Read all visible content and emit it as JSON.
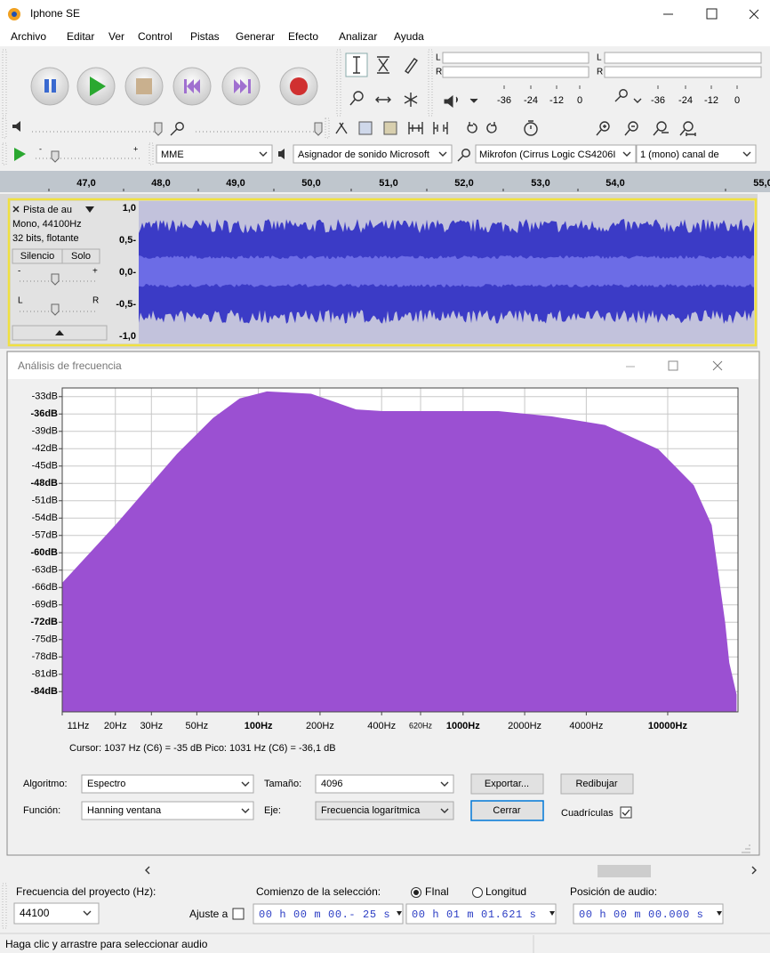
{
  "window": {
    "title": "Iphone SE"
  },
  "menu": [
    "Archivo",
    "Editar",
    "Ver",
    "Control",
    "Pistas",
    "Generar",
    "Efecto",
    "Analizar",
    "Ayuda"
  ],
  "playback_meter": {
    "left": "L",
    "right": "R",
    "scale": [
      "-36",
      "-24",
      "-12",
      "0"
    ]
  },
  "record_meter": {
    "left": "L",
    "right": "R",
    "scale": [
      "-36",
      "-24",
      "-12",
      "0"
    ]
  },
  "play_speed": {
    "min": "-",
    "max": "+"
  },
  "device_toolbar": {
    "host": "MME",
    "output": "Asignador de sonido Microsoft",
    "input": "Mikrofon (Cirrus Logic CS4206I",
    "channels": "1 (mono) canal de"
  },
  "timeline": [
    "47,0",
    "48,0",
    "49,0",
    "50,0",
    "51,0",
    "52,0",
    "53,0",
    "54,0",
    "55,0"
  ],
  "track": {
    "name": "Pista de au",
    "info": [
      "Mono, 44100Hz",
      "32 bits, flotante"
    ],
    "buttons": [
      "Silencio",
      "Solo"
    ],
    "gain": [
      "-",
      "+"
    ],
    "pan": [
      "L",
      "R"
    ],
    "scale": [
      "1,0",
      "0,5-",
      "0,0-",
      "-0,5-",
      "-1,0"
    ]
  },
  "dialog": {
    "title": "Análisis de frecuencia",
    "chart_data": {
      "type": "area",
      "x": [
        11,
        20,
        40,
        60,
        81,
        110,
        181,
        300,
        404,
        813,
        1487,
        2700,
        4940,
        9000,
        13400,
        16400,
        19100,
        20000,
        21700
      ],
      "values": [
        -65.2,
        -55.2,
        -42.9,
        -36.7,
        -33.3,
        -32.1,
        -32.5,
        -35.2,
        -35.5,
        -35.5,
        -35.5,
        -36.4,
        -37.9,
        -42.1,
        -48.3,
        -55.2,
        -72.1,
        -79,
        -84.5
      ],
      "color": "#9b50d2",
      "log_x": true,
      "grid": true,
      "xlim": [
        11,
        22050
      ],
      "ylim": [
        -87.5,
        -31.5
      ],
      "xticks": [
        {
          "value": 11,
          "label": "11Hz"
        },
        {
          "value": 20,
          "label": "20Hz"
        },
        {
          "value": 30,
          "label": "30Hz"
        },
        {
          "value": 50,
          "label": "50Hz"
        },
        {
          "value": 100,
          "label": "100Hz"
        },
        {
          "value": 200,
          "label": "200Hz"
        },
        {
          "value": 400,
          "label": "400Hz"
        },
        {
          "value": 620,
          "label": "620Hz"
        },
        {
          "value": 1000,
          "label": "1000Hz"
        },
        {
          "value": 2000,
          "label": "2000Hz"
        },
        {
          "value": 4000,
          "label": "4000Hz"
        },
        {
          "value": 10000,
          "label": "10000Hz"
        }
      ],
      "yticks": [
        {
          "value": -33,
          "label": "-33dB"
        },
        {
          "value": -36,
          "label": "-36dB"
        },
        {
          "value": -39,
          "label": "-39dB"
        },
        {
          "value": -42,
          "label": "-42dB"
        },
        {
          "value": -45,
          "label": "-45dB"
        },
        {
          "value": -48,
          "label": "-48dB"
        },
        {
          "value": -51,
          "label": "-51dB"
        },
        {
          "value": -54,
          "label": "-54dB"
        },
        {
          "value": -57,
          "label": "-57dB"
        },
        {
          "value": -60,
          "label": "-60dB"
        },
        {
          "value": -63,
          "label": "-63dB"
        },
        {
          "value": -66,
          "label": "-66dB"
        },
        {
          "value": -69,
          "label": "-69dB"
        },
        {
          "value": -72,
          "label": "-72dB"
        },
        {
          "value": -75,
          "label": "-75dB"
        },
        {
          "value": -78,
          "label": "-78dB"
        },
        {
          "value": -81,
          "label": "-81dB"
        },
        {
          "value": -84,
          "label": "-84dB"
        }
      ]
    },
    "cursor_text": "Cursor: 1037 Hz (C6) = -35 dB   Pico: 1031 Hz (C6) = -36,1 dB",
    "controls": {
      "algorithm_label": "Algoritmo:",
      "algorithm": "Espectro",
      "size_label": "Tamaño:",
      "size": "4096",
      "export": "Exportar...",
      "replot": "Redibujar",
      "function_label": "Función:",
      "function": "Hanning ventana",
      "axis_label": "Eje:",
      "axis": "Frecuencia logarítmica",
      "close": "Cerrar",
      "grids": "Cuadrículas"
    }
  },
  "selection_bar": {
    "project_rate_label": "Frecuencia del proyecto (Hz):",
    "project_rate": "44100",
    "snap_label": "Ajuste a",
    "start_label": "Comienzo de la selección:",
    "end_option": "FInal",
    "length_option": "Longitud",
    "position_label": "Posición de audio:",
    "start": "00 h 00 m 00.- 25 s",
    "end": "00 h 01 m 01.621 s",
    "position": "00 h 00 m 00.000 s"
  },
  "status": "Haga clic y arrastre para seleccionar audio"
}
